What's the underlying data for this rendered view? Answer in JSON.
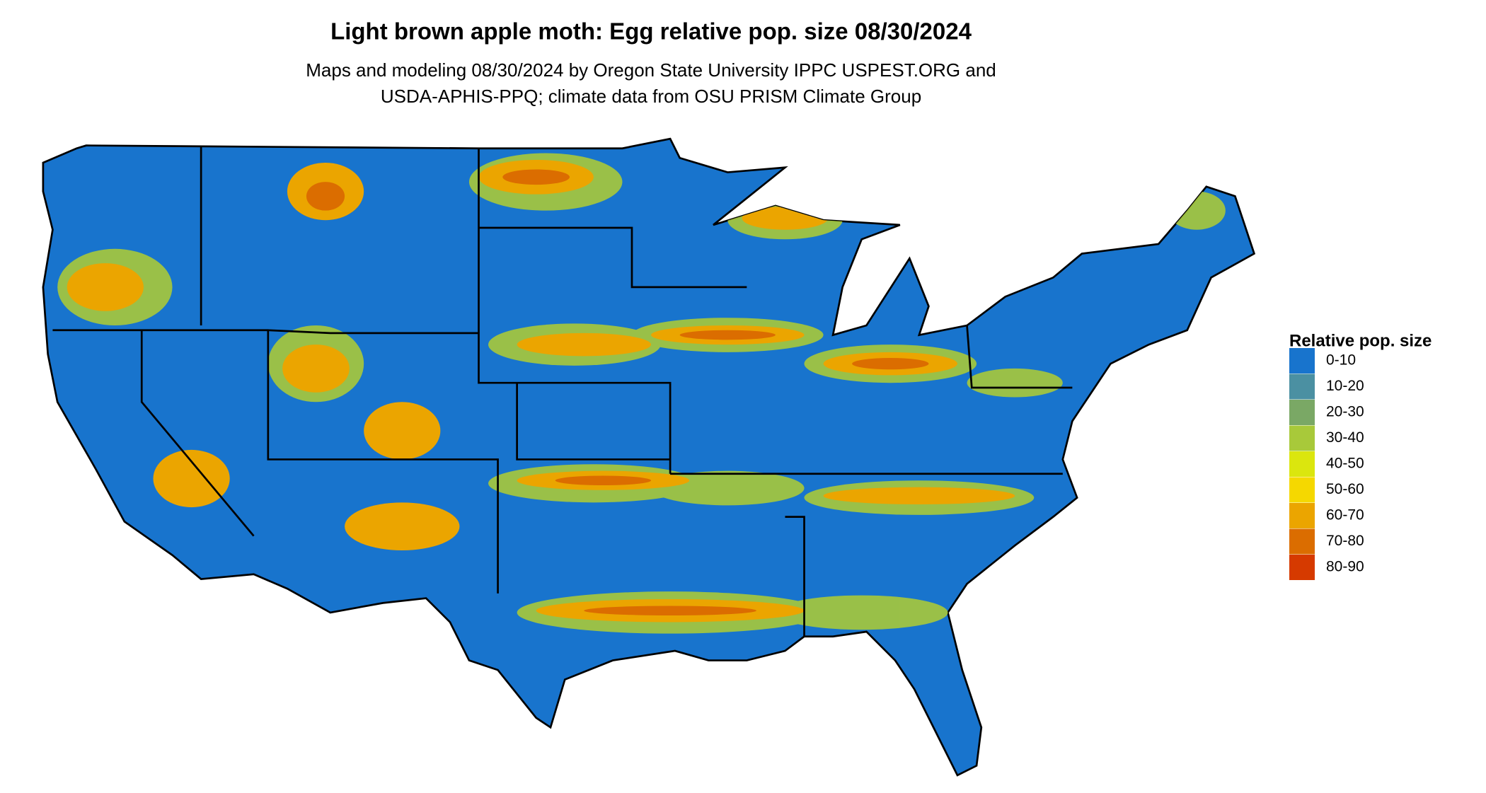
{
  "title": "Light brown apple moth: Egg relative pop. size 08/30/2024",
  "subtitle": [
    "Maps and modeling 08/30/2024 by Oregon State University IPPC USPEST.ORG and",
    "USDA-APHIS-PPQ; climate data from OSU PRISM Climate Group"
  ],
  "legend": {
    "title": "Relative pop. size",
    "items": [
      {
        "label": "0-10",
        "color": "#1874cd"
      },
      {
        "label": "10-20",
        "color": "#4b90a2"
      },
      {
        "label": "20-30",
        "color": "#7aa865"
      },
      {
        "label": "30-40",
        "color": "#a8c93a"
      },
      {
        "label": "40-50",
        "color": "#dbe60e"
      },
      {
        "label": "50-60",
        "color": "#f5d800"
      },
      {
        "label": "60-70",
        "color": "#eba500"
      },
      {
        "label": "70-80",
        "color": "#db6d00"
      },
      {
        "label": "80-90",
        "color": "#d63a00"
      }
    ]
  }
}
